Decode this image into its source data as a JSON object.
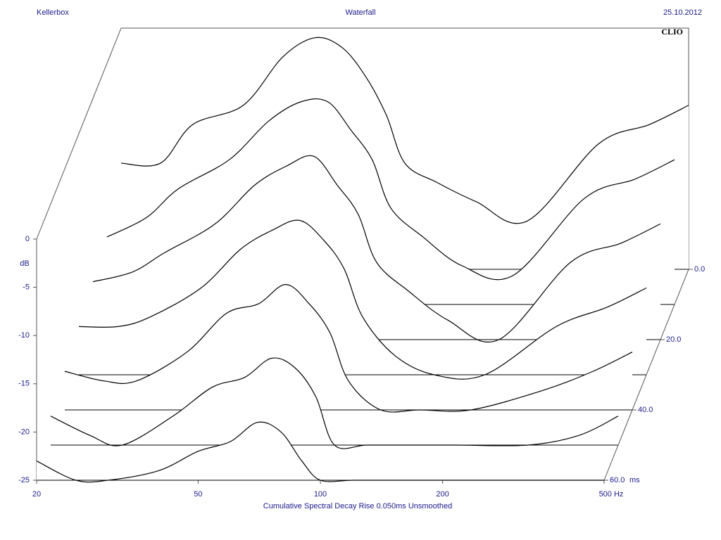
{
  "header": {
    "left": "Kellerbox",
    "center": "Waterfall",
    "right": "25.10.2012",
    "brand": "CLIO"
  },
  "chart_data": {
    "type": "waterfall",
    "x_label": "Cumulative Spectral Decay   Rise 0.050ms   Unsmoothed",
    "y_label": "dB",
    "z_unit": "ms",
    "x": [
      20,
      25,
      30,
      40,
      50,
      60,
      70,
      80,
      90,
      100,
      120,
      150,
      200,
      300,
      400,
      500
    ],
    "xlim": [
      20,
      500
    ],
    "log_x": true,
    "xticks": [
      20,
      50,
      100,
      200,
      {
        "value": 500,
        "label": "500 Hz"
      }
    ],
    "ylim": [
      -25,
      0
    ],
    "yticks": [
      0,
      -5,
      -10,
      -15,
      -20,
      -25
    ],
    "zlim": [
      0,
      60
    ],
    "zticks": [
      {
        "value": 0,
        "label": "0.0"
      },
      {
        "value": 20,
        "label": "20.0"
      },
      {
        "value": 40,
        "label": "40.0"
      },
      {
        "value": 60,
        "label": "60.0"
      }
    ],
    "color": "#000000",
    "slices": [
      {
        "t": 0,
        "values": [
          -14,
          -14,
          -10,
          -8,
          -3,
          -1,
          -2,
          -5,
          -9,
          -14,
          -16,
          -18,
          -20,
          -12,
          -10,
          -8
        ]
      },
      {
        "t": 10,
        "values": [
          -18,
          -16,
          -13,
          -10,
          -6,
          -4,
          -4,
          -7,
          -10,
          -15,
          -18,
          -21,
          -22,
          -14,
          -12,
          -10
        ]
      },
      {
        "t": 20,
        "values": [
          -19,
          -18,
          -16,
          -13,
          -9,
          -7,
          -6,
          -9,
          -12,
          -17,
          -20,
          -23,
          -25,
          -17,
          -15,
          -13
        ]
      },
      {
        "t": 30,
        "values": [
          -20,
          -20,
          -19,
          -16,
          -12,
          -10,
          -9,
          -11,
          -14,
          -19,
          -23,
          -25,
          -25,
          -20,
          -18,
          -16
        ]
      },
      {
        "t": 40,
        "values": [
          -21,
          -22,
          -22,
          -19,
          -15,
          -14,
          -12,
          -14,
          -17,
          -22,
          -25,
          -25,
          -25,
          -23,
          -21,
          -19
        ]
      },
      {
        "t": 50,
        "values": [
          -22,
          -24,
          -25,
          -22,
          -19,
          -18,
          -16,
          -17,
          -20,
          -25,
          -25,
          -25,
          -25,
          -25,
          -24,
          -22
        ]
      },
      {
        "t": 60,
        "values": [
          -23,
          -25,
          -25,
          -24,
          -22,
          -21,
          -19,
          -20,
          -23,
          -25,
          -25,
          -25,
          -25,
          -25,
          -25,
          -25
        ]
      }
    ]
  }
}
